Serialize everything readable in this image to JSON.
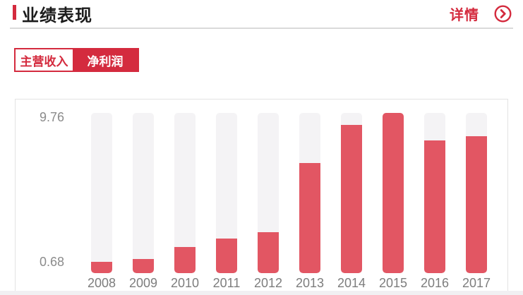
{
  "header": {
    "title": "业绩表现",
    "detail_label": "详情",
    "detail_icon": "circle-chevron-right-icon"
  },
  "tabs": {
    "items": [
      {
        "label": "主营收入",
        "active": true
      },
      {
        "label": "净利润",
        "active": false
      }
    ]
  },
  "chart_data": {
    "type": "bar",
    "title": "业绩表现 - 主营收入",
    "categories": [
      "2008",
      "2009",
      "2010",
      "2011",
      "2012",
      "2013",
      "2014",
      "2015",
      "2016",
      "2017"
    ],
    "values": [
      0.68,
      0.85,
      1.58,
      2.09,
      2.51,
      6.69,
      9.05,
      9.76,
      8.1,
      8.35
    ],
    "xlabel": "",
    "ylabel": "",
    "ylim": [
      0,
      9.76
    ],
    "y_max_label": "9.76",
    "y_min_label": "0.68",
    "grid": false,
    "legend": "none",
    "bar_color": "#e25663",
    "track_color": "#f4f3f5"
  },
  "colors": {
    "brand_red": "#d42b3e",
    "bar_red": "#e25663",
    "track_grey": "#f4f3f5",
    "title_text": "#1b1b1b",
    "axis_text": "#8b8b8b"
  }
}
